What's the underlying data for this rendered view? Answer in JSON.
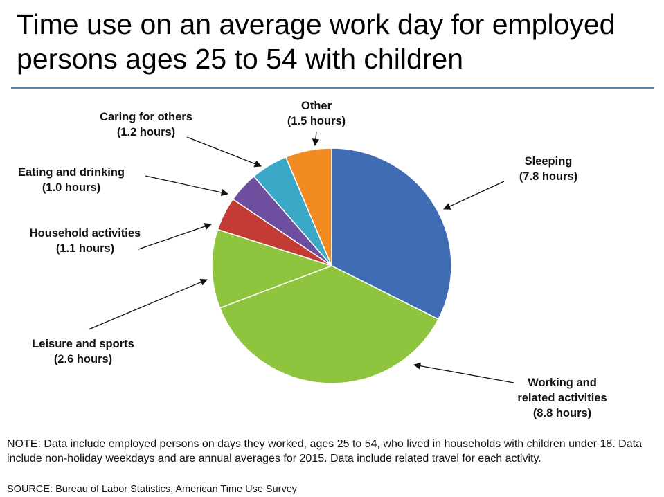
{
  "chart_data": {
    "type": "pie",
    "title": "Time use on an average work day for employed persons ages 25 to 54 with children",
    "unit": "hours",
    "slices": [
      {
        "name": "Sleeping",
        "value": 7.8,
        "value_label": "(7.8 hours)",
        "color": "#3f6cb3"
      },
      {
        "name": "Working and related activities",
        "name_lines": [
          "Working and",
          "related activities"
        ],
        "value": 8.8,
        "value_label": "(8.8 hours)",
        "color": "#8fc53e"
      },
      {
        "name": "Leisure and sports",
        "value": 2.6,
        "value_label": "(2.6 hours)",
        "color": "#8fc53e"
      },
      {
        "name": "Household activities",
        "value": 1.1,
        "value_label": "(1.1 hours)",
        "color": "#c23b35"
      },
      {
        "name": "Eating and drinking",
        "value": 1.0,
        "value_label": "(1.0 hours)",
        "color": "#6e4e9e"
      },
      {
        "name": "Caring for others",
        "value": 1.2,
        "value_label": "(1.2 hours)",
        "color": "#3aa8c6"
      },
      {
        "name": "Other",
        "value": 1.5,
        "value_label": "(1.5 hours)",
        "color": "#f28b22"
      }
    ]
  },
  "note": "NOTE: Data include employed persons on days they worked, ages 25 to 54, who lived in households with children under 18. Data include non-holiday weekdays and are annual averages for 2015. Data include related travel for each activity.",
  "source": "SOURCE: Bureau of Labor Statistics, American Time Use Survey",
  "colors": {
    "rule": "#5b83ad",
    "sleeping": "#3f6cb3",
    "working": "#8fc53e",
    "household": "#c23b35",
    "eating": "#6e4e9e",
    "caring": "#3aa8c6",
    "other": "#f28b22"
  }
}
